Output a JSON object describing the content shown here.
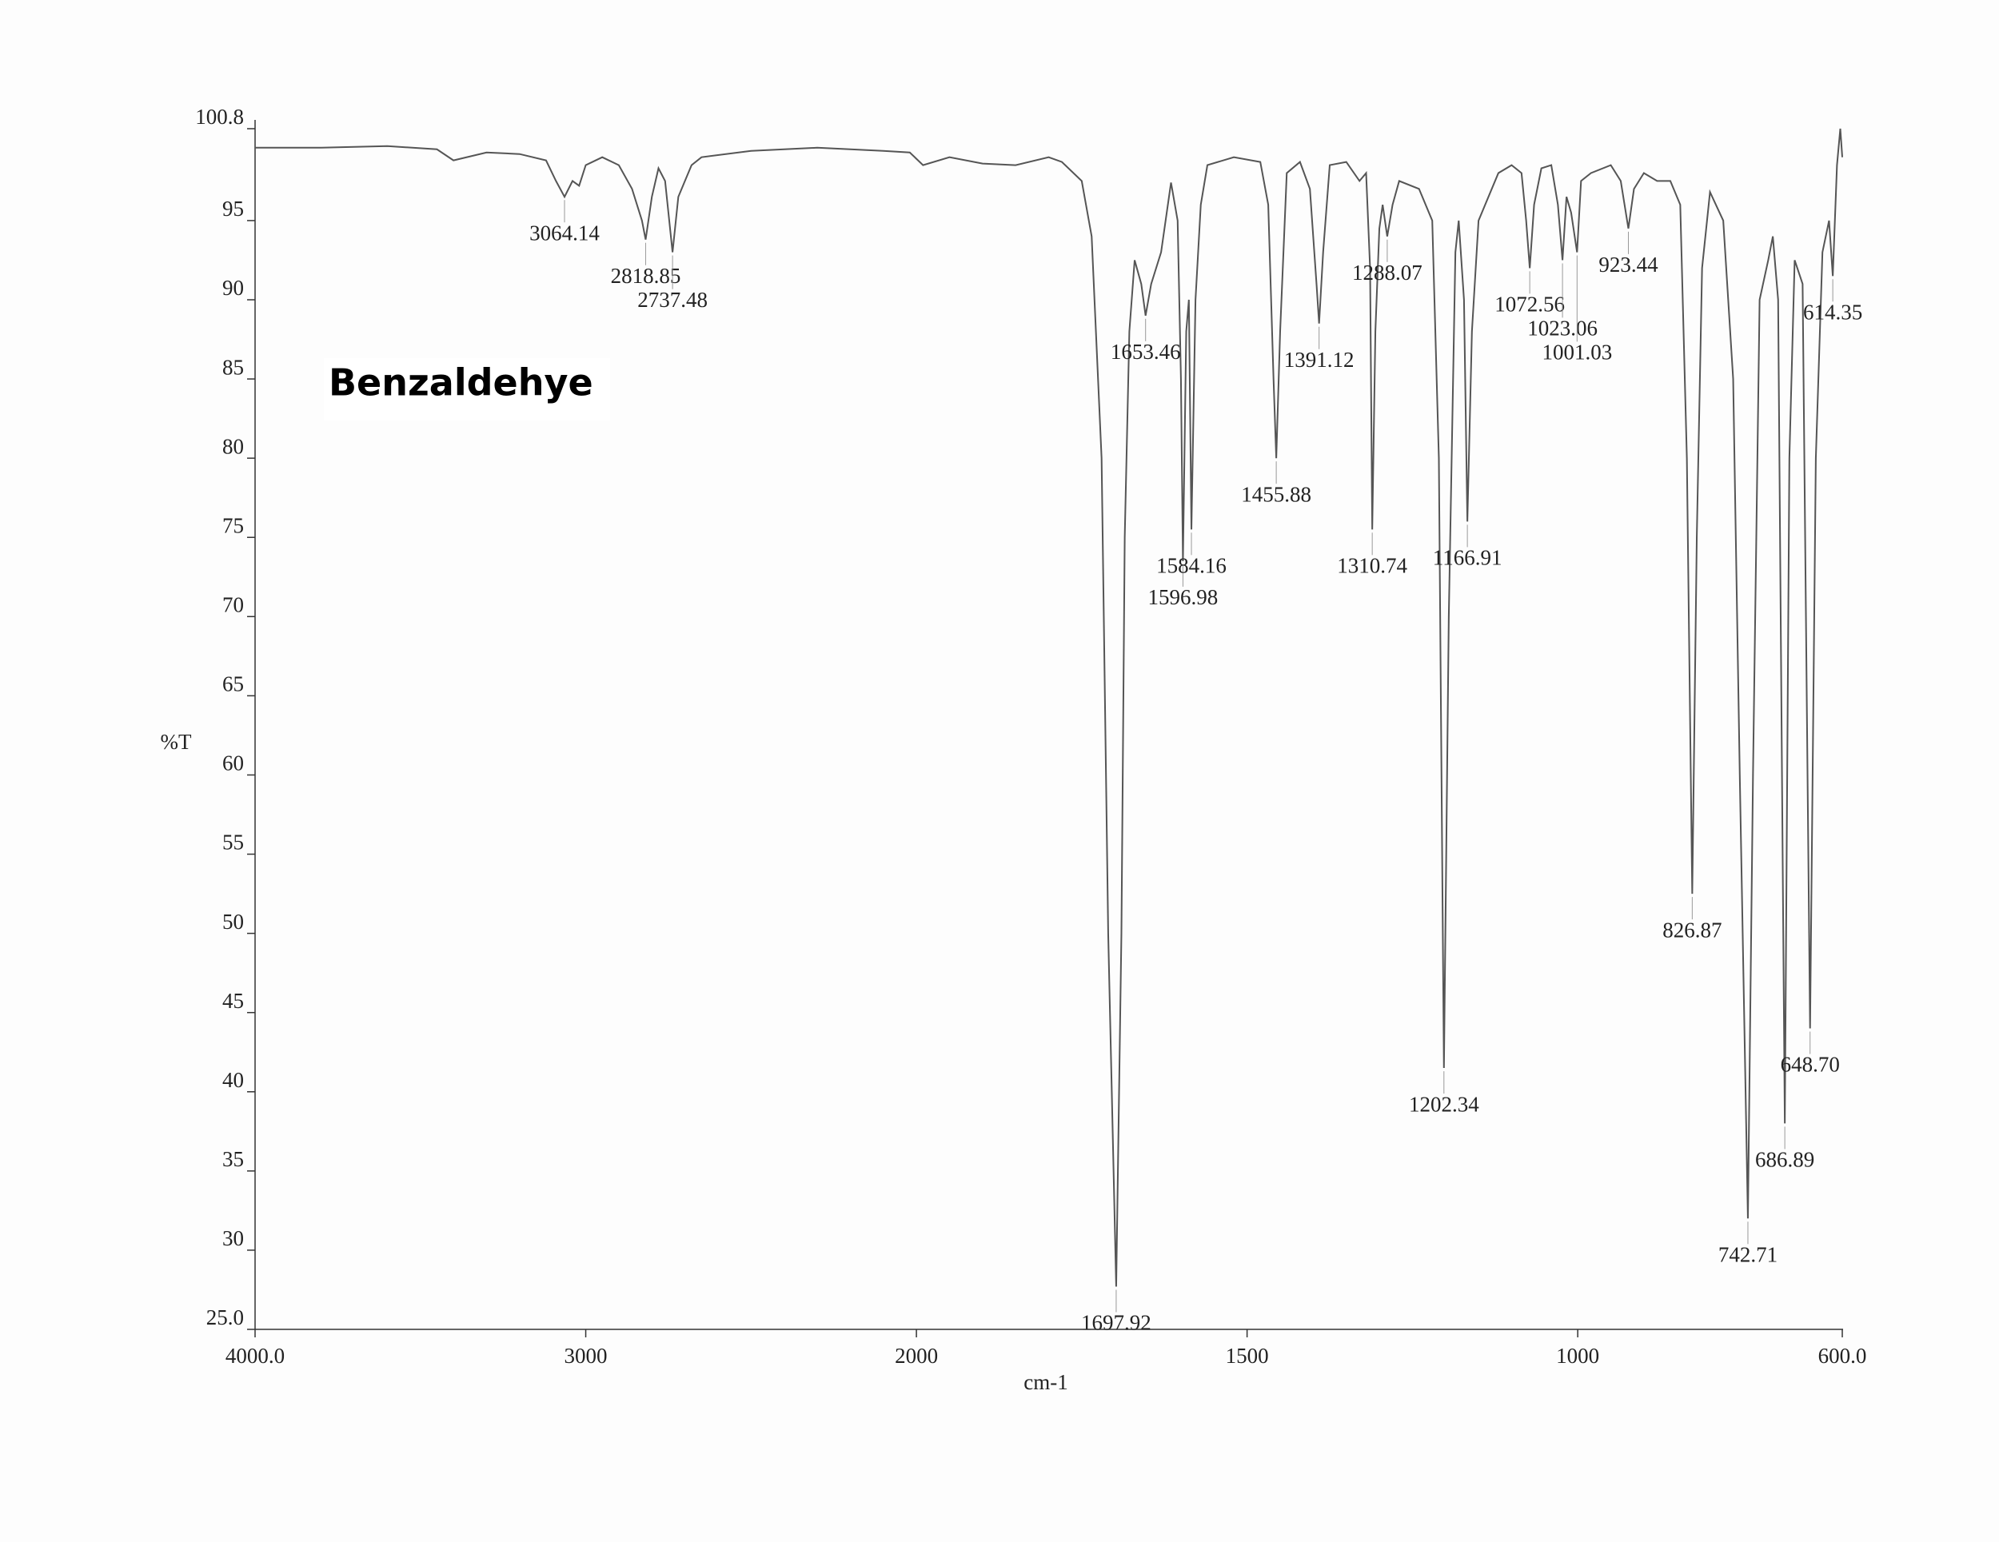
{
  "chart_data": {
    "type": "line",
    "title": "Benzaldehye",
    "x_label": "cm-1",
    "y_label": "%T",
    "color": "#555555",
    "xlim": [
      4000,
      600
    ],
    "ylim": [
      25,
      100.8
    ],
    "x_scale_break": 2000,
    "x_scale_ratio": 2,
    "xticks": [
      {
        "value": 4000,
        "label": "4000.0"
      },
      3000,
      2000,
      1500,
      1000,
      {
        "value": 600,
        "label": "600.0"
      }
    ],
    "yticks": [
      {
        "value": 25,
        "label": "25.0"
      },
      30,
      35,
      40,
      45,
      50,
      55,
      60,
      65,
      70,
      75,
      80,
      85,
      90,
      95,
      100.8
    ],
    "x": [
      4000,
      3800,
      3600,
      3450,
      3400,
      3300,
      3200,
      3120,
      3090,
      3064.14,
      3040,
      3020,
      3000,
      2950,
      2900,
      2860,
      2830,
      2818.85,
      2800,
      2780,
      2760,
      2737.48,
      2720,
      2700,
      2680,
      2650,
      2500,
      2300,
      2100,
      2020,
      1990,
      1950,
      1900,
      1850,
      1800,
      1780,
      1750,
      1735,
      1720,
      1710,
      1697.92,
      1690,
      1685,
      1678,
      1670,
      1660,
      1653.46,
      1645,
      1630,
      1615,
      1605,
      1600,
      1596.98,
      1592,
      1588,
      1584.16,
      1578,
      1570,
      1560,
      1520,
      1480,
      1468,
      1460,
      1455.88,
      1450,
      1440,
      1420,
      1405,
      1395,
      1391.12,
      1385,
      1375,
      1350,
      1330,
      1320,
      1314,
      1310.74,
      1306,
      1300,
      1295,
      1288.07,
      1280,
      1270,
      1240,
      1220,
      1210,
      1202.34,
      1195,
      1185,
      1180,
      1172,
      1166.91,
      1160,
      1150,
      1120,
      1100,
      1085,
      1078,
      1072.56,
      1066,
      1055,
      1040,
      1030,
      1023.06,
      1017,
      1010,
      1001.03,
      995,
      980,
      950,
      935,
      923.44,
      915,
      900,
      880,
      860,
      845,
      835,
      826.87,
      820,
      812,
      800,
      780,
      765,
      755,
      742.71,
      735,
      725,
      712,
      705,
      697,
      686.89,
      680,
      672,
      660,
      648.7,
      640,
      630,
      620,
      614.35,
      608,
      603,
      600
    ],
    "values": [
      99.6,
      99.6,
      99.7,
      99.5,
      98.8,
      99.3,
      99.2,
      98.8,
      97.5,
      96.5,
      97.5,
      97.2,
      98.5,
      99,
      98.5,
      97,
      95,
      93.8,
      96.5,
      98.3,
      97.5,
      93,
      96.5,
      97.5,
      98.5,
      99,
      99.4,
      99.6,
      99.4,
      99.3,
      98.5,
      99,
      98.6,
      98.5,
      99,
      98.7,
      97.5,
      94,
      80,
      50,
      27.7,
      50,
      75,
      88,
      92.5,
      91,
      89,
      91,
      93,
      97.4,
      95,
      85,
      73.5,
      88,
      90,
      75.5,
      90,
      96,
      98.5,
      99,
      98.7,
      96,
      85,
      80,
      88,
      98,
      98.7,
      97,
      91,
      88.5,
      93,
      98.5,
      98.7,
      97.5,
      98,
      92,
      75.5,
      88,
      94.5,
      96,
      94,
      96,
      97.5,
      97,
      95,
      80,
      41.5,
      70,
      93,
      95,
      90,
      76,
      88,
      95,
      98,
      98.5,
      98,
      95,
      92,
      96,
      98.3,
      98.5,
      96,
      92.5,
      96.5,
      95.5,
      93,
      97.5,
      98,
      98.5,
      97.5,
      94.5,
      97,
      98,
      97.5,
      97.5,
      96,
      80,
      52.5,
      75,
      92,
      96.8,
      95,
      85,
      60,
      32,
      60,
      90,
      92.5,
      94,
      90,
      38,
      80,
      92.5,
      91,
      44,
      80,
      93,
      95,
      91.5,
      98.5,
      100.8,
      99
    ],
    "peaks": [
      {
        "x": 3064.14,
        "y": 96.5,
        "label": "3064.14"
      },
      {
        "x": 2818.85,
        "y": 93.8,
        "label": "2818.85"
      },
      {
        "x": 2737.48,
        "y": 93,
        "label": "2737.48"
      },
      {
        "x": 1697.92,
        "y": 27.7,
        "label": "1697.92"
      },
      {
        "x": 1653.46,
        "y": 89,
        "label": "1653.46"
      },
      {
        "x": 1596.98,
        "y": 73.5,
        "label": "1596.98"
      },
      {
        "x": 1584.16,
        "y": 75.5,
        "label": "1584.16"
      },
      {
        "x": 1455.88,
        "y": 80,
        "label": "1455.88"
      },
      {
        "x": 1391.12,
        "y": 88.5,
        "label": "1391.12"
      },
      {
        "x": 1310.74,
        "y": 75.5,
        "label": "1310.74"
      },
      {
        "x": 1288.07,
        "y": 94,
        "label": "1288.07"
      },
      {
        "x": 1202.34,
        "y": 41.5,
        "label": "1202.34"
      },
      {
        "x": 1166.91,
        "y": 76,
        "label": "1166.91"
      },
      {
        "x": 1072.56,
        "y": 92,
        "label": "1072.56"
      },
      {
        "x": 1023.06,
        "y": 92.5,
        "label": "1023.06"
      },
      {
        "x": 1001.03,
        "y": 93,
        "label": "1001.03"
      },
      {
        "x": 923.44,
        "y": 94.5,
        "label": "923.44"
      },
      {
        "x": 826.87,
        "y": 52.5,
        "label": "826.87"
      },
      {
        "x": 742.71,
        "y": 32,
        "label": "742.71"
      },
      {
        "x": 686.89,
        "y": 38,
        "label": "686.89"
      },
      {
        "x": 648.7,
        "y": 44,
        "label": "648.70"
      },
      {
        "x": 614.35,
        "y": 91.5,
        "label": "614.35"
      }
    ]
  }
}
